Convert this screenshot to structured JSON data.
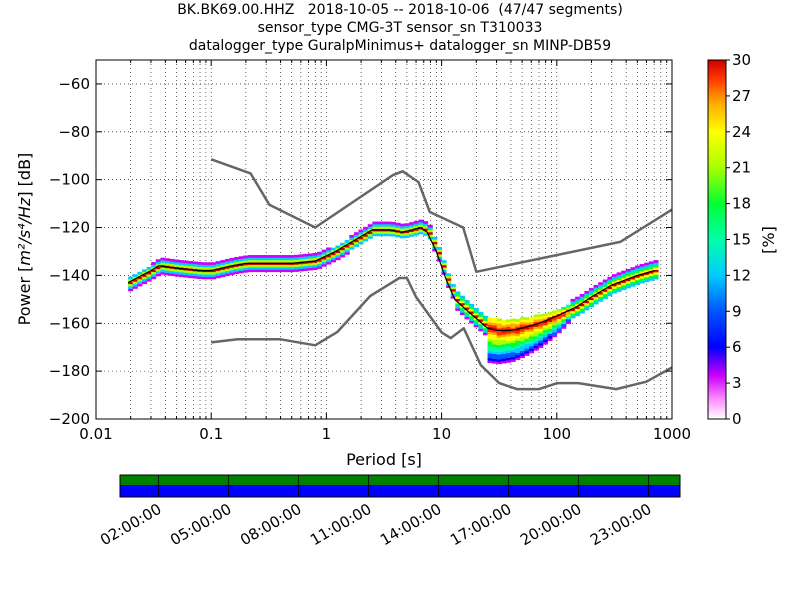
{
  "title_lines": [
    "BK.BK69.00.HHZ   2018-10-05 -- 2018-10-06  (47/47 segments)",
    "sensor_type CMG-3T sensor_sn T310033",
    "datalogger_type GuralpMinimus+ datalogger_sn MINP-DB59"
  ],
  "chart_data": {
    "type": "heatmap",
    "xlabel": "Period [s]",
    "ylabel_prefix": "Power [",
    "ylabel_math": "m²/s⁴/Hz",
    "ylabel_suffix": "] [dB]",
    "xscale": "log",
    "xlim": [
      0.01,
      1000
    ],
    "ylim": [
      -200,
      -50
    ],
    "x_ticks": [
      {
        "value": 0.01,
        "label": "0.01"
      },
      {
        "value": 0.1,
        "label": "0.1"
      },
      {
        "value": 1,
        "label": "1"
      },
      {
        "value": 10,
        "label": "10"
      },
      {
        "value": 100,
        "label": "100"
      },
      {
        "value": 1000,
        "label": "1000"
      }
    ],
    "y_ticks": [
      {
        "value": -60,
        "label": "−60"
      },
      {
        "value": -80,
        "label": "−80"
      },
      {
        "value": -100,
        "label": "−100"
      },
      {
        "value": -120,
        "label": "−120"
      },
      {
        "value": -140,
        "label": "−140"
      },
      {
        "value": -160,
        "label": "−160"
      },
      {
        "value": -180,
        "label": "−180"
      },
      {
        "value": -200,
        "label": "−200"
      }
    ],
    "grid": true,
    "colorbar": {
      "label": "[%]",
      "min": 0,
      "max": 30,
      "ticks": [
        "0",
        "3",
        "6",
        "9",
        "12",
        "15",
        "18",
        "21",
        "24",
        "27",
        "30"
      ]
    },
    "noise_model_high": {
      "x": [
        0.1,
        0.22,
        0.32,
        0.8,
        3.8,
        4.6,
        6.3,
        7.9,
        15.4,
        20,
        354.8,
        1000
      ],
      "y": [
        -91.5,
        -97.4,
        -110.5,
        -120,
        -98,
        -96.5,
        -101,
        -113.5,
        -120,
        -138.5,
        -126,
        -112.5
      ]
    },
    "noise_model_low": {
      "x": [
        0.1,
        0.17,
        0.4,
        0.8,
        1.24,
        2.4,
        4.3,
        5,
        6,
        10,
        12,
        15.6,
        21.9,
        31.6,
        45,
        70,
        101,
        154,
        328,
        600,
        1000
      ],
      "y": [
        -168,
        -166.7,
        -166.7,
        -169.2,
        -163.7,
        -148.6,
        -141.1,
        -141.1,
        -149,
        -163.8,
        -166.2,
        -162.1,
        -177.5,
        -185,
        -187.5,
        -187.5,
        -185,
        -185,
        -187.5,
        -184.4,
        -178.5
      ]
    },
    "mode_curve": {
      "x": [
        0.019,
        0.025,
        0.03,
        0.035,
        0.05,
        0.08,
        0.1,
        0.15,
        0.2,
        0.3,
        0.5,
        0.8,
        1.2,
        1.8,
        2.5,
        3.5,
        4.5,
        5.5,
        6.5,
        7.5,
        9,
        11,
        13,
        16,
        20,
        25,
        30,
        40,
        50,
        70,
        100,
        150,
        200,
        300,
        500,
        700
      ],
      "y": [
        -143,
        -140,
        -138,
        -136,
        -137,
        -138,
        -138,
        -136,
        -135,
        -135,
        -135,
        -134,
        -130,
        -125,
        -121,
        -121,
        -122,
        -121,
        -120,
        -122,
        -130,
        -142,
        -150,
        -154,
        -158,
        -162,
        -163,
        -163,
        -162,
        -160,
        -157,
        -153,
        -149,
        -144,
        -140,
        -138
      ]
    },
    "time_axis": {
      "labels": [
        "02:00:00",
        "05:00:00",
        "08:00:00",
        "11:00:00",
        "14:00:00",
        "17:00:00",
        "20:00:00",
        "23:00:00"
      ],
      "coverage_colors": {
        "data": "#008000",
        "gaps": "#0000ff"
      }
    }
  }
}
